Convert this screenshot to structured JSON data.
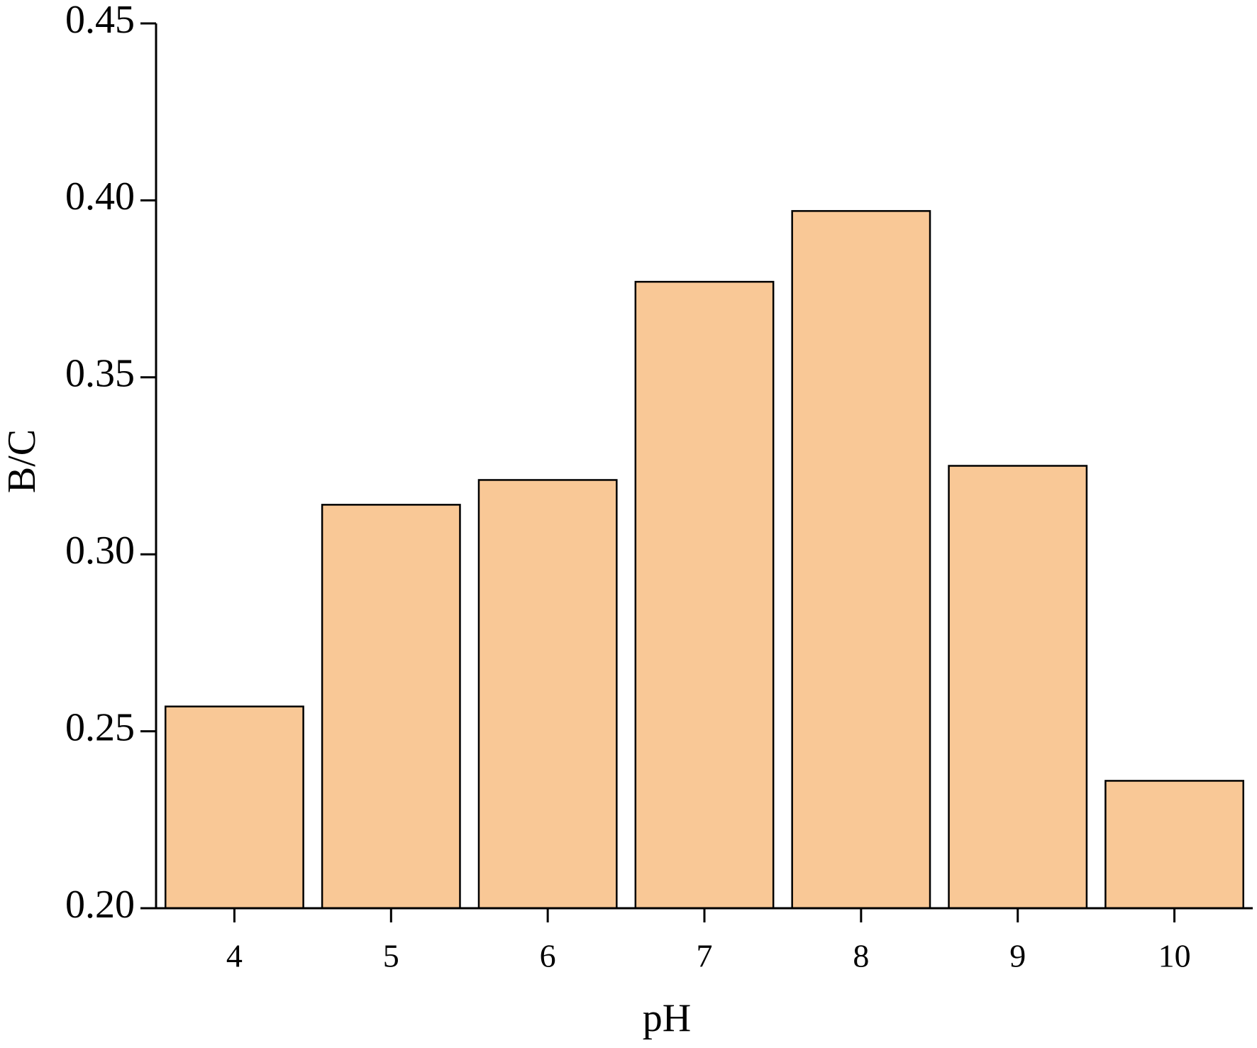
{
  "chart_data": {
    "type": "bar",
    "x_label": "pH",
    "y_label": "B/C",
    "categories": [
      "4",
      "5",
      "6",
      "7",
      "8",
      "9",
      "10"
    ],
    "values": [
      0.257,
      0.314,
      0.321,
      0.377,
      0.397,
      0.325,
      0.236
    ],
    "color": "#f9c896",
    "ylim": [
      0.2,
      0.45
    ],
    "yticks": [
      {
        "value": 0.2,
        "label": "0.20"
      },
      0.25,
      {
        "value": 0.3,
        "label": "0.30"
      },
      0.35,
      {
        "value": 0.4,
        "label": "0.40"
      },
      0.45
    ],
    "grid": false
  }
}
